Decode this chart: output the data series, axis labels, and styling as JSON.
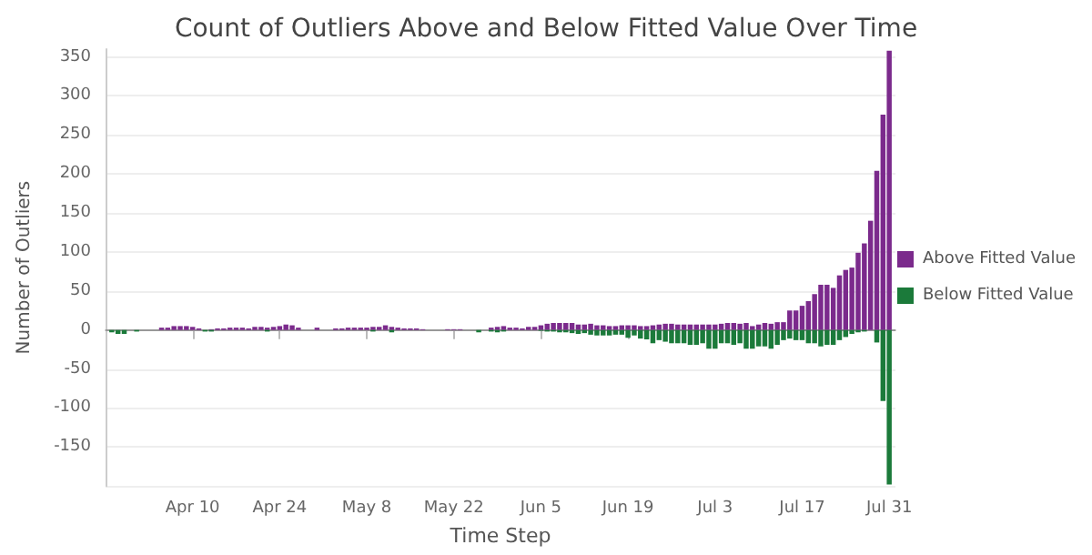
{
  "chart_data": {
    "type": "bar",
    "title": "Count of Outliers Above and Below Fitted Value Over Time",
    "xlabel": "Time Step",
    "ylabel": "Number of Outliers",
    "x": [
      "--03-28",
      "--03-29",
      "--03-30",
      "--03-31",
      "--04-01",
      "--04-02",
      "--04-03",
      "--04-04",
      "--04-05",
      "--04-06",
      "--04-07",
      "--04-08",
      "--04-09",
      "--04-10",
      "--04-11",
      "--04-12",
      "--04-13",
      "--04-14",
      "--04-15",
      "--04-16",
      "--04-17",
      "--04-18",
      "--04-19",
      "--04-20",
      "--04-21",
      "--04-22",
      "--04-23",
      "--04-24",
      "--04-25",
      "--04-26",
      "--04-27",
      "--04-28",
      "--04-29",
      "--04-30",
      "--05-01",
      "--05-02",
      "--05-03",
      "--05-04",
      "--05-05",
      "--05-06",
      "--05-07",
      "--05-08",
      "--05-09",
      "--05-10",
      "--05-11",
      "--05-12",
      "--05-13",
      "--05-14",
      "--05-15",
      "--05-16",
      "--05-17",
      "--05-18",
      "--05-19",
      "--05-20",
      "--05-21",
      "--05-22",
      "--05-23",
      "--05-24",
      "--05-25",
      "--05-26",
      "--05-27",
      "--05-28",
      "--05-29",
      "--05-30",
      "--05-31",
      "--06-01",
      "--06-02",
      "--06-03",
      "--06-04",
      "--06-05",
      "--06-06",
      "--06-07",
      "--06-08",
      "--06-09",
      "--06-10",
      "--06-11",
      "--06-12",
      "--06-13",
      "--06-14",
      "--06-15",
      "--06-16",
      "--06-17",
      "--06-18",
      "--06-19",
      "--06-20",
      "--06-21",
      "--06-22",
      "--06-23",
      "--06-24",
      "--06-25",
      "--06-26",
      "--06-27",
      "--06-28",
      "--06-29",
      "--06-30",
      "--07-01",
      "--07-02",
      "--07-03",
      "--07-04",
      "--07-05",
      "--07-06",
      "--07-07",
      "--07-08",
      "--07-09",
      "--07-10",
      "--07-11",
      "--07-12",
      "--07-13",
      "--07-14",
      "--07-15",
      "--07-16",
      "--07-17",
      "--07-18",
      "--07-19",
      "--07-20",
      "--07-21",
      "--07-22",
      "--07-23",
      "--07-24",
      "--07-25",
      "--07-26",
      "--07-27",
      "--07-28",
      "--07-29",
      "--07-30",
      "--07-31"
    ],
    "series": [
      {
        "name": "Above Fitted Value",
        "color": "#7b2a8c",
        "values": [
          null,
          null,
          null,
          null,
          null,
          null,
          null,
          null,
          3,
          3,
          5,
          5,
          5,
          4,
          2,
          null,
          1,
          2,
          2,
          3,
          3,
          3,
          2,
          4,
          4,
          3,
          4,
          5,
          7,
          6,
          3,
          null,
          null,
          3,
          null,
          null,
          2,
          2,
          3,
          3,
          3,
          3,
          4,
          4,
          6,
          4,
          3,
          2,
          2,
          2,
          1,
          null,
          null,
          null,
          1,
          1,
          1,
          null,
          null,
          null,
          null,
          3,
          4,
          5,
          3,
          3,
          2,
          4,
          4,
          6,
          8,
          9,
          9,
          9,
          9,
          7,
          7,
          8,
          6,
          6,
          5,
          5,
          6,
          6,
          6,
          5,
          5,
          6,
          7,
          8,
          8,
          7,
          7,
          7,
          7,
          7,
          7,
          7,
          8,
          9,
          9,
          8,
          9,
          5,
          7,
          9,
          8,
          10,
          10,
          25,
          25,
          31,
          37,
          46,
          58,
          58,
          54,
          70,
          77,
          80,
          99,
          111,
          140,
          204,
          276,
          358
        ]
      },
      {
        "name": "Below Fitted Value",
        "color": "#1b7a3a",
        "values": [
          -3,
          -5,
          -5,
          null,
          -2,
          null,
          null,
          null,
          null,
          null,
          null,
          null,
          null,
          null,
          null,
          -2,
          -2,
          null,
          null,
          null,
          null,
          null,
          null,
          null,
          null,
          -2,
          null,
          null,
          null,
          null,
          null,
          null,
          null,
          null,
          null,
          null,
          null,
          null,
          null,
          null,
          null,
          null,
          -2,
          null,
          null,
          -3,
          null,
          null,
          null,
          null,
          null,
          null,
          null,
          null,
          null,
          null,
          null,
          null,
          null,
          -3,
          null,
          -2,
          -3,
          -2,
          null,
          null,
          null,
          null,
          null,
          -1,
          -2,
          -2,
          -3,
          -3,
          -4,
          -5,
          -4,
          -6,
          -7,
          -7,
          -7,
          -6,
          -6,
          -10,
          -7,
          -11,
          -12,
          -17,
          -13,
          -15,
          -17,
          -17,
          -17,
          -19,
          -19,
          -17,
          -24,
          -24,
          -17,
          -17,
          -19,
          -17,
          -24,
          -24,
          -21,
          -21,
          -24,
          -19,
          -13,
          -11,
          -13,
          -13,
          -17,
          -17,
          -21,
          -19,
          -19,
          -13,
          -9,
          -5,
          -3,
          -2,
          null,
          -16,
          -91,
          -198
        ]
      }
    ],
    "xlim": [
      "--03-27",
      "--08-01"
    ],
    "xticks": [
      {
        "value": "--04-10",
        "label": "Apr 10"
      },
      {
        "value": "--04-24",
        "label": "Apr 24"
      },
      {
        "value": "--05-08",
        "label": "May 8"
      },
      {
        "value": "--05-22",
        "label": "May 22"
      },
      {
        "value": "--06-05",
        "label": "Jun 5"
      },
      {
        "value": "--06-19",
        "label": "Jun 19"
      },
      {
        "value": "--07-03",
        "label": "Jul 3"
      },
      {
        "value": "--07-17",
        "label": "Jul 17"
      },
      {
        "value": "--07-31",
        "label": "Jul 31"
      }
    ],
    "ylim": [
      -200,
      360
    ],
    "yticks": [
      {
        "value": -200,
        "label": null
      },
      -150,
      -100,
      -50,
      0,
      50,
      100,
      150,
      200,
      250,
      300,
      350
    ],
    "ref_lines": [
      {
        "axis": "y",
        "value": 0,
        "color": "#999999"
      }
    ],
    "grid": "y",
    "legend": "right"
  }
}
